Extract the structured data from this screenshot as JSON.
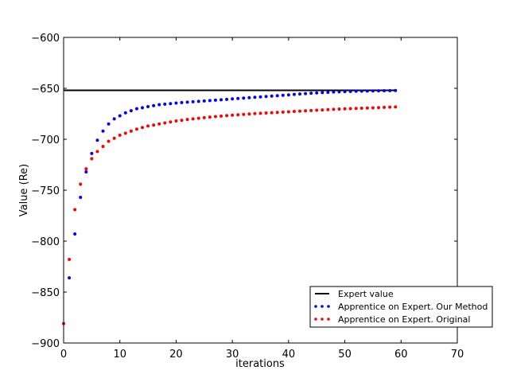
{
  "chart_data": {
    "type": "scatter",
    "xlabel": "iterations",
    "ylabel": "Value (Re)",
    "xlim": [
      0,
      70
    ],
    "ylim": [
      -900,
      -600
    ],
    "xticks": [
      0,
      10,
      20,
      30,
      40,
      50,
      60,
      70
    ],
    "yticks": [
      -900,
      -850,
      -800,
      -750,
      -700,
      -650,
      -600
    ],
    "xtick_labels": [
      "0",
      "10",
      "20",
      "30",
      "40",
      "50",
      "60",
      "70"
    ],
    "ytick_labels": [
      "−900",
      "−850",
      "−800",
      "−750",
      "−700",
      "−650",
      "−600"
    ],
    "grid": false,
    "legend_placement": "lower-right",
    "expert": {
      "name": "Expert value",
      "value": -652,
      "x_range": [
        0,
        59
      ],
      "color": "#000000"
    },
    "our_method": {
      "name": "Apprentice on Expert. Our Method",
      "color": "#0000ff",
      "x": [
        1,
        2,
        3,
        4,
        5,
        6,
        7,
        8,
        9,
        10,
        11,
        12,
        13,
        14,
        15,
        16,
        17,
        18,
        19,
        20,
        21,
        22,
        23,
        24,
        25,
        26,
        27,
        28,
        29,
        30,
        31,
        32,
        33,
        34,
        35,
        36,
        37,
        38,
        39,
        40,
        41,
        42,
        43,
        44,
        45,
        46,
        47,
        48,
        49,
        50,
        51,
        52,
        53,
        54,
        55,
        56,
        57,
        58,
        59
      ],
      "y": [
        -836,
        -793,
        -757,
        -732,
        -714,
        -701,
        -692,
        -685,
        -680,
        -677,
        -674,
        -672,
        -670,
        -669,
        -668,
        -667,
        -666,
        -665.5,
        -665,
        -664.5,
        -664,
        -663.6,
        -663.2,
        -662.8,
        -662.4,
        -662,
        -661.6,
        -661.2,
        -660.8,
        -660.4,
        -660,
        -659.6,
        -659.2,
        -658.8,
        -658.4,
        -658,
        -657.6,
        -657.2,
        -656.8,
        -656.4,
        -656,
        -655.6,
        -655.2,
        -654.8,
        -654.5,
        -654.2,
        -653.9,
        -653.6,
        -653.4,
        -653.2,
        -653,
        -652.8,
        -652.7,
        -652.6,
        -652.5,
        -652.4,
        -652.3,
        -652.2,
        -652.1
      ]
    },
    "original": {
      "name": "Apprentice on Expert. Original",
      "color": "#ff0000",
      "x": [
        0,
        1,
        2,
        3,
        4,
        5,
        6,
        7,
        8,
        9,
        10,
        11,
        12,
        13,
        14,
        15,
        16,
        17,
        18,
        19,
        20,
        21,
        22,
        23,
        24,
        25,
        26,
        27,
        28,
        29,
        30,
        31,
        32,
        33,
        34,
        35,
        36,
        37,
        38,
        39,
        40,
        41,
        42,
        43,
        44,
        45,
        46,
        47,
        48,
        49,
        50,
        51,
        52,
        53,
        54,
        55,
        56,
        57,
        58,
        59
      ],
      "y": [
        -881,
        -818,
        -769,
        -744,
        -729,
        -719,
        -712,
        -707,
        -702,
        -699,
        -696,
        -694,
        -692,
        -690,
        -688.5,
        -687,
        -686,
        -685,
        -684,
        -683,
        -682,
        -681.3,
        -680.6,
        -680,
        -679.4,
        -678.8,
        -678.2,
        -677.7,
        -677.2,
        -676.8,
        -676.4,
        -676,
        -675.6,
        -675.2,
        -674.8,
        -674.5,
        -674.2,
        -673.9,
        -673.6,
        -673.3,
        -673,
        -672.7,
        -672.4,
        -672.1,
        -671.8,
        -671.5,
        -671.2,
        -670.9,
        -670.6,
        -670.3,
        -670.1,
        -669.9,
        -669.7,
        -669.5,
        -669.3,
        -669.1,
        -668.9,
        -668.7,
        -668.5,
        -668.3
      ]
    }
  }
}
